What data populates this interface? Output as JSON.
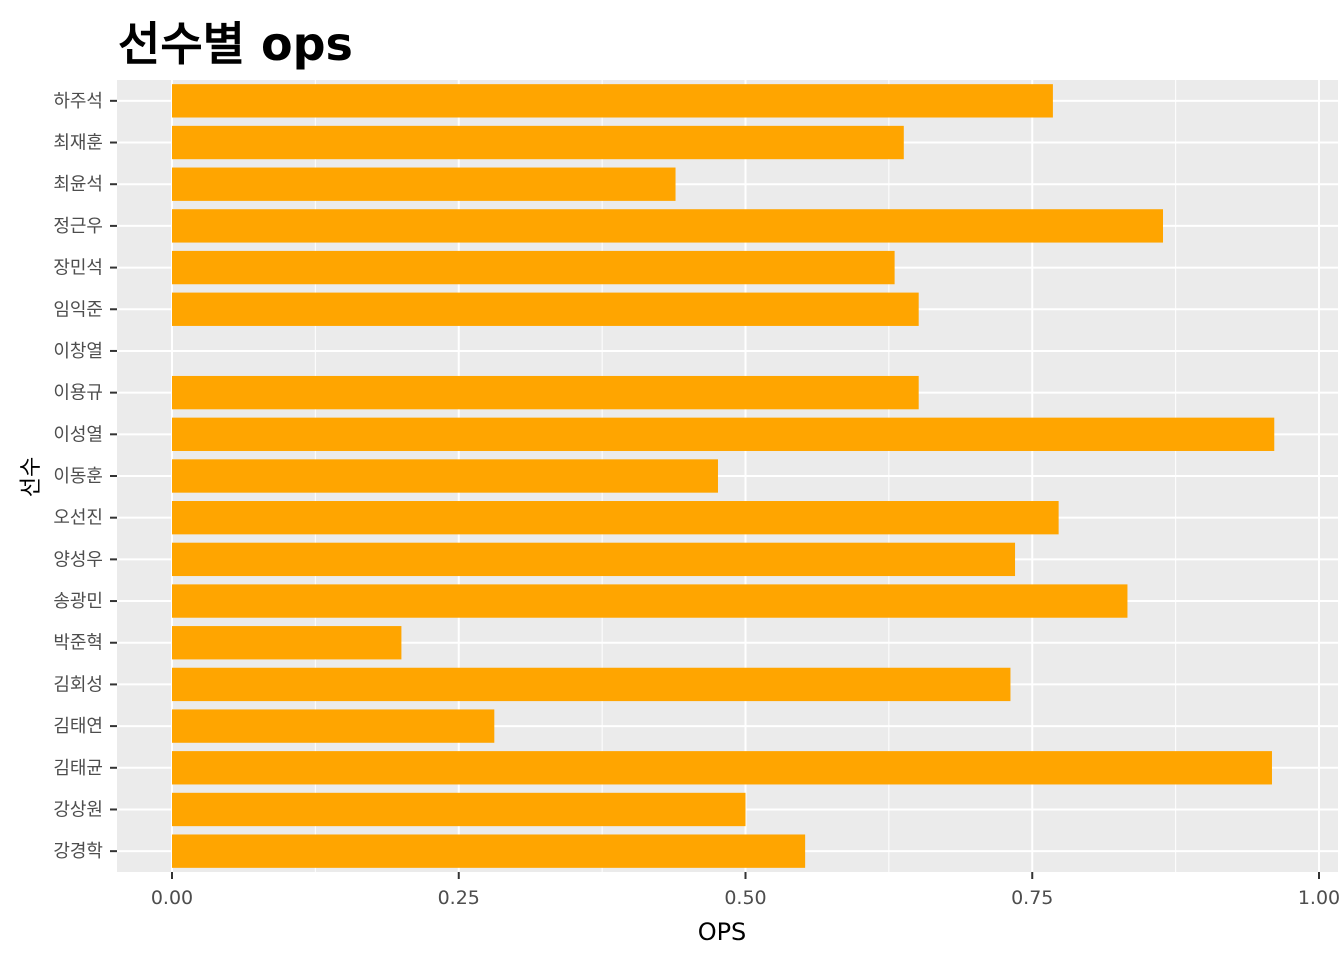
{
  "chart_data": {
    "type": "bar",
    "orientation": "horizontal",
    "title": "선수별 ops",
    "xlabel": "OPS",
    "ylabel": "선수",
    "xlim": [
      -0.095,
      1.0
    ],
    "x_ticks": [
      "0.00",
      "0.25",
      "0.50",
      "0.75",
      "1.00"
    ],
    "x_tick_values": [
      0,
      0.25,
      0.5,
      0.75,
      1.0
    ],
    "grid": true,
    "bar_color": "#FFA500",
    "panel_background": "#EBEBEB",
    "categories": [
      "하주석",
      "최재훈",
      "최윤석",
      "정근우",
      "장민석",
      "임익준",
      "이창열",
      "이용규",
      "이성열",
      "이동훈",
      "오선진",
      "양성우",
      "송광민",
      "박준혁",
      "김회성",
      "김태연",
      "김태균",
      "강상원",
      "강경학"
    ],
    "values": [
      0.768,
      0.638,
      0.439,
      0.864,
      0.63,
      0.651,
      0.0,
      0.651,
      0.961,
      0.476,
      0.773,
      0.735,
      0.833,
      0.2,
      0.731,
      0.281,
      0.959,
      0.5,
      0.552
    ]
  }
}
